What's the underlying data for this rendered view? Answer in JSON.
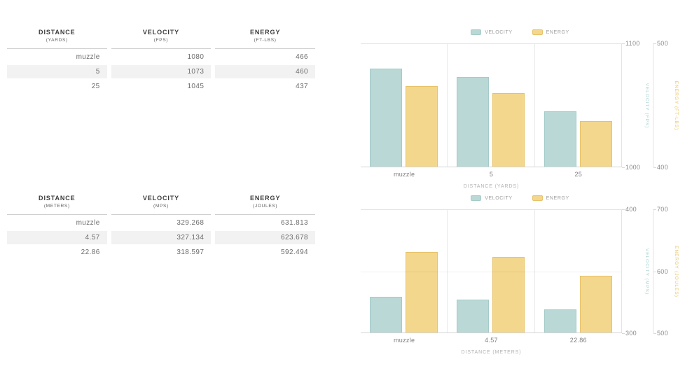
{
  "palette": {
    "velocity_fill": "#b9d8d6",
    "velocity_border": "#a3cbc9",
    "velocity_label_text": "#a9d2d2",
    "energy_fill": "#f3d78c",
    "energy_border": "#e7c269",
    "energy_label_text": "#e9c465",
    "grid_line": "#e3e3e3",
    "axis_tick_text": "#8b8b8b",
    "x_label_text": "#7d7d7d",
    "x_title_text": "#b3b3b3",
    "table_stripe": "#f2f2f2",
    "table_header_text": "#3c3c3c",
    "table_cell_text": "#6d6d6d"
  },
  "tables": [
    {
      "name": "imperial",
      "columns": [
        {
          "title": "DISTANCE",
          "unit": "(YARDS)"
        },
        {
          "title": "VELOCITY",
          "unit": "(FPS)"
        },
        {
          "title": "ENERGY",
          "unit": "(FT-LBS)"
        }
      ],
      "rows": [
        [
          "muzzle",
          "1080",
          "466"
        ],
        [
          "5",
          "1073",
          "460"
        ],
        [
          "25",
          "1045",
          "437"
        ]
      ]
    },
    {
      "name": "metric",
      "columns": [
        {
          "title": "DISTANCE",
          "unit": "(METERS)"
        },
        {
          "title": "VELOCITY",
          "unit": "(MPS)"
        },
        {
          "title": "ENERGY",
          "unit": "(JOULES)"
        }
      ],
      "rows": [
        [
          "muzzle",
          "329.268",
          "631.813"
        ],
        [
          "4.57",
          "327.134",
          "623.678"
        ],
        [
          "22.86",
          "318.597",
          "592.494"
        ]
      ]
    }
  ],
  "chart_data": [
    {
      "type": "bar",
      "title": "",
      "categories": [
        "muzzle",
        "5",
        "25"
      ],
      "series": [
        {
          "name": "VELOCITY",
          "axis": "velocity",
          "values": [
            1080,
            1073,
            1045
          ]
        },
        {
          "name": "ENERGY",
          "axis": "energy",
          "values": [
            466,
            460,
            437
          ]
        }
      ],
      "xlabel": "DISTANCE (YARDS)",
      "axes": {
        "velocity": {
          "label": "VELOCITY (FPS)",
          "min": 1000,
          "max": 1100,
          "ticks": [
            1100,
            1000
          ]
        },
        "energy": {
          "label": "ENERGY (FT-LBS)",
          "min": 400,
          "max": 500,
          "ticks": [
            500,
            400
          ]
        }
      },
      "legend_position": "top",
      "grid": "vertical-category-dividers",
      "mid_gridline": false
    },
    {
      "type": "bar",
      "title": "",
      "categories": [
        "muzzle",
        "4.57",
        "22.86"
      ],
      "series": [
        {
          "name": "VELOCITY",
          "axis": "velocity",
          "values": [
            329.268,
            327.134,
            318.597
          ]
        },
        {
          "name": "ENERGY",
          "axis": "energy",
          "values": [
            631.813,
            623.678,
            592.494
          ]
        }
      ],
      "xlabel": "DISTANCE (METERS)",
      "axes": {
        "velocity": {
          "label": "VELOCITY (MPS)",
          "min": 300,
          "max": 400,
          "ticks": [
            400,
            300
          ]
        },
        "energy": {
          "label": "ENERGY (JOULES)",
          "min": 500,
          "max": 700,
          "ticks": [
            700,
            600,
            500
          ]
        }
      },
      "legend_position": "top",
      "grid": "vertical-category-dividers",
      "mid_gridline": true
    }
  ]
}
